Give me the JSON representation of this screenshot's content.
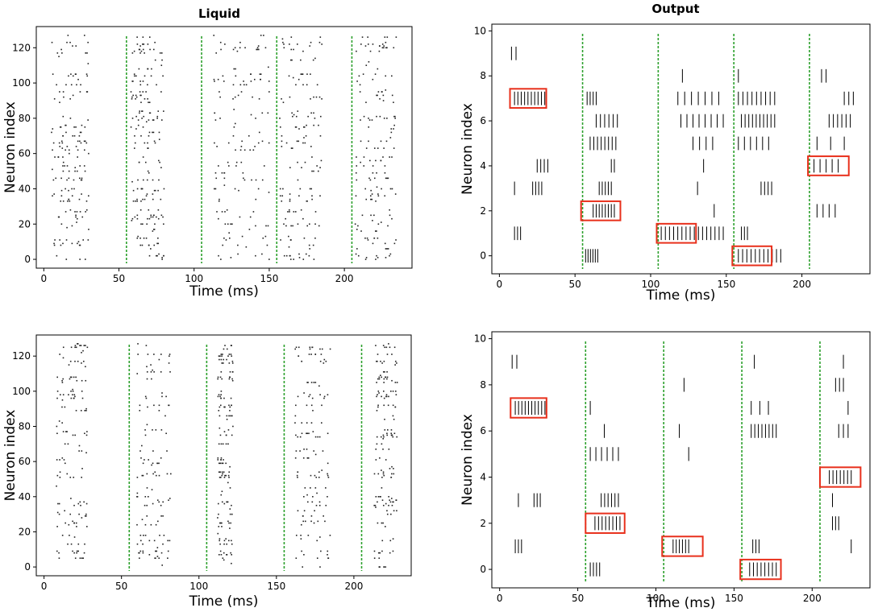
{
  "chart_data": [
    {
      "type": "scatter",
      "title": "Liquid",
      "xlabel": "Time (ms)",
      "ylabel": "Neuron index",
      "xlim": [
        -5,
        245
      ],
      "ylim": [
        -5,
        132
      ],
      "xticks": [
        0,
        50,
        100,
        150,
        200
      ],
      "yticks": [
        0,
        20,
        40,
        60,
        80,
        100,
        120
      ],
      "divider_color": "#2ca02c",
      "dividers": [
        55,
        105,
        155,
        205
      ],
      "burst_windows": [
        [
          5,
          30
        ],
        [
          58,
          80
        ],
        [
          113,
          150
        ],
        [
          157,
          185
        ],
        [
          207,
          235
        ]
      ],
      "n_neurons": 128,
      "seed": 11
    },
    {
      "type": "scatter",
      "title": "Output",
      "xlabel": "Time (ms)",
      "ylabel": "Neuron index",
      "xlim": [
        -5,
        245
      ],
      "ylim": [
        -0.8,
        10.3
      ],
      "xticks": [
        0,
        50,
        100,
        150,
        200
      ],
      "yticks": [
        0,
        2,
        4,
        6,
        8,
        10
      ],
      "divider_color": "#2ca02c",
      "highlight_color": "#e8301c",
      "dividers": [
        55,
        105,
        155,
        205
      ],
      "spike_groups": [
        {
          "n": 9,
          "x0": 8,
          "x1": 11,
          "count": 2
        },
        {
          "n": 7,
          "x0": 10,
          "x1": 30,
          "count": 10
        },
        {
          "n": 4,
          "x0": 25,
          "x1": 32,
          "count": 4
        },
        {
          "n": 3,
          "x0": 10,
          "x1": 10,
          "count": 1
        },
        {
          "n": 3,
          "x0": 22,
          "x1": 28,
          "count": 4
        },
        {
          "n": 1,
          "x0": 10,
          "x1": 14,
          "count": 3
        },
        {
          "n": 7,
          "x0": 58,
          "x1": 64,
          "count": 4
        },
        {
          "n": 6,
          "x0": 64,
          "x1": 78,
          "count": 6
        },
        {
          "n": 5,
          "x0": 60,
          "x1": 77,
          "count": 8
        },
        {
          "n": 4,
          "x0": 74,
          "x1": 76,
          "count": 2
        },
        {
          "n": 3,
          "x0": 66,
          "x1": 74,
          "count": 5
        },
        {
          "n": 2,
          "x0": 62,
          "x1": 76,
          "count": 8
        },
        {
          "n": 0,
          "x0": 57,
          "x1": 65,
          "count": 6
        },
        {
          "n": 8,
          "x0": 121,
          "x1": 121,
          "count": 1
        },
        {
          "n": 7,
          "x0": 118,
          "x1": 145,
          "count": 7
        },
        {
          "n": 6,
          "x0": 120,
          "x1": 148,
          "count": 8
        },
        {
          "n": 5,
          "x0": 128,
          "x1": 141,
          "count": 4
        },
        {
          "n": 4,
          "x0": 135,
          "x1": 135,
          "count": 1
        },
        {
          "n": 3,
          "x0": 131,
          "x1": 131,
          "count": 1
        },
        {
          "n": 2,
          "x0": 142,
          "x1": 142,
          "count": 1
        },
        {
          "n": 1,
          "x0": 107,
          "x1": 148,
          "count": 16
        },
        {
          "n": 8,
          "x0": 158,
          "x1": 158,
          "count": 1
        },
        {
          "n": 7,
          "x0": 158,
          "x1": 182,
          "count": 9
        },
        {
          "n": 6,
          "x0": 160,
          "x1": 182,
          "count": 10
        },
        {
          "n": 5,
          "x0": 158,
          "x1": 178,
          "count": 6
        },
        {
          "n": 3,
          "x0": 173,
          "x1": 180,
          "count": 4
        },
        {
          "n": 1,
          "x0": 160,
          "x1": 164,
          "count": 3
        },
        {
          "n": 0,
          "x0": 158,
          "x1": 186,
          "count": 11
        },
        {
          "n": 8,
          "x0": 213,
          "x1": 216,
          "count": 2
        },
        {
          "n": 7,
          "x0": 228,
          "x1": 234,
          "count": 3
        },
        {
          "n": 6,
          "x0": 218,
          "x1": 232,
          "count": 6
        },
        {
          "n": 5,
          "x0": 210,
          "x1": 228,
          "count": 3
        },
        {
          "n": 4,
          "x0": 208,
          "x1": 224,
          "count": 5
        },
        {
          "n": 2,
          "x0": 210,
          "x1": 222,
          "count": 4
        }
      ],
      "highlight_boxes": [
        {
          "n": 7,
          "x0": 7,
          "x1": 31
        },
        {
          "n": 2,
          "x0": 54,
          "x1": 80
        },
        {
          "n": 1,
          "x0": 104,
          "x1": 130
        },
        {
          "n": 0,
          "x0": 154,
          "x1": 180
        },
        {
          "n": 4,
          "x0": 204,
          "x1": 231
        }
      ]
    },
    {
      "type": "scatter",
      "title": "",
      "xlabel": "Time (ms)",
      "ylabel": "Neuron index",
      "xlim": [
        -5,
        237
      ],
      "ylim": [
        -5,
        132
      ],
      "xticks": [
        0,
        50,
        100,
        150,
        200
      ],
      "yticks": [
        0,
        20,
        40,
        60,
        80,
        100,
        120
      ],
      "divider_color": "#2ca02c",
      "dividers": [
        55,
        105,
        155,
        205
      ],
      "burst_windows": [
        [
          8,
          28
        ],
        [
          60,
          82
        ],
        [
          112,
          122
        ],
        [
          161,
          185
        ],
        [
          213,
          228
        ]
      ],
      "n_neurons": 128,
      "seed": 29
    },
    {
      "type": "scatter",
      "title": "",
      "xlabel": "Time (ms)",
      "ylabel": "Neuron index",
      "xlim": [
        -5,
        237
      ],
      "ylim": [
        -0.8,
        10.3
      ],
      "xticks": [
        0,
        50,
        100,
        150,
        200
      ],
      "yticks": [
        0,
        2,
        4,
        6,
        8,
        10
      ],
      "divider_color": "#2ca02c",
      "highlight_color": "#e8301c",
      "dividers": [
        55,
        105,
        155,
        205
      ],
      "spike_groups": [
        {
          "n": 9,
          "x0": 8,
          "x1": 11,
          "count": 2
        },
        {
          "n": 7,
          "x0": 10,
          "x1": 29,
          "count": 10
        },
        {
          "n": 3,
          "x0": 12,
          "x1": 12,
          "count": 1
        },
        {
          "n": 3,
          "x0": 22,
          "x1": 26,
          "count": 3
        },
        {
          "n": 1,
          "x0": 10,
          "x1": 14,
          "count": 3
        },
        {
          "n": 7,
          "x0": 58,
          "x1": 58,
          "count": 1
        },
        {
          "n": 6,
          "x0": 67,
          "x1": 67,
          "count": 1
        },
        {
          "n": 5,
          "x0": 58,
          "x1": 76,
          "count": 6
        },
        {
          "n": 3,
          "x0": 65,
          "x1": 76,
          "count": 6
        },
        {
          "n": 2,
          "x0": 61,
          "x1": 77,
          "count": 8
        },
        {
          "n": 0,
          "x0": 58,
          "x1": 64,
          "count": 4
        },
        {
          "n": 8,
          "x0": 118,
          "x1": 118,
          "count": 1
        },
        {
          "n": 6,
          "x0": 115,
          "x1": 115,
          "count": 1
        },
        {
          "n": 5,
          "x0": 121,
          "x1": 121,
          "count": 1
        },
        {
          "n": 1,
          "x0": 111,
          "x1": 121,
          "count": 6
        },
        {
          "n": 9,
          "x0": 163,
          "x1": 163,
          "count": 1
        },
        {
          "n": 7,
          "x0": 161,
          "x1": 172,
          "count": 3
        },
        {
          "n": 6,
          "x0": 161,
          "x1": 177,
          "count": 8
        },
        {
          "n": 1,
          "x0": 162,
          "x1": 166,
          "count": 3
        },
        {
          "n": 0,
          "x0": 160,
          "x1": 177,
          "count": 8
        },
        {
          "n": 9,
          "x0": 220,
          "x1": 220,
          "count": 1
        },
        {
          "n": 8,
          "x0": 215,
          "x1": 220,
          "count": 3
        },
        {
          "n": 7,
          "x0": 223,
          "x1": 223,
          "count": 1
        },
        {
          "n": 6,
          "x0": 217,
          "x1": 223,
          "count": 3
        },
        {
          "n": 4,
          "x0": 211,
          "x1": 225,
          "count": 7
        },
        {
          "n": 3,
          "x0": 213,
          "x1": 213,
          "count": 1
        },
        {
          "n": 2,
          "x0": 213,
          "x1": 217,
          "count": 3
        },
        {
          "n": 1,
          "x0": 225,
          "x1": 225,
          "count": 1
        }
      ],
      "highlight_boxes": [
        {
          "n": 7,
          "x0": 7,
          "x1": 30
        },
        {
          "n": 2,
          "x0": 55,
          "x1": 80
        },
        {
          "n": 1,
          "x0": 104,
          "x1": 130
        },
        {
          "n": 0,
          "x0": 154,
          "x1": 180
        },
        {
          "n": 4,
          "x0": 205,
          "x1": 231
        }
      ]
    }
  ]
}
